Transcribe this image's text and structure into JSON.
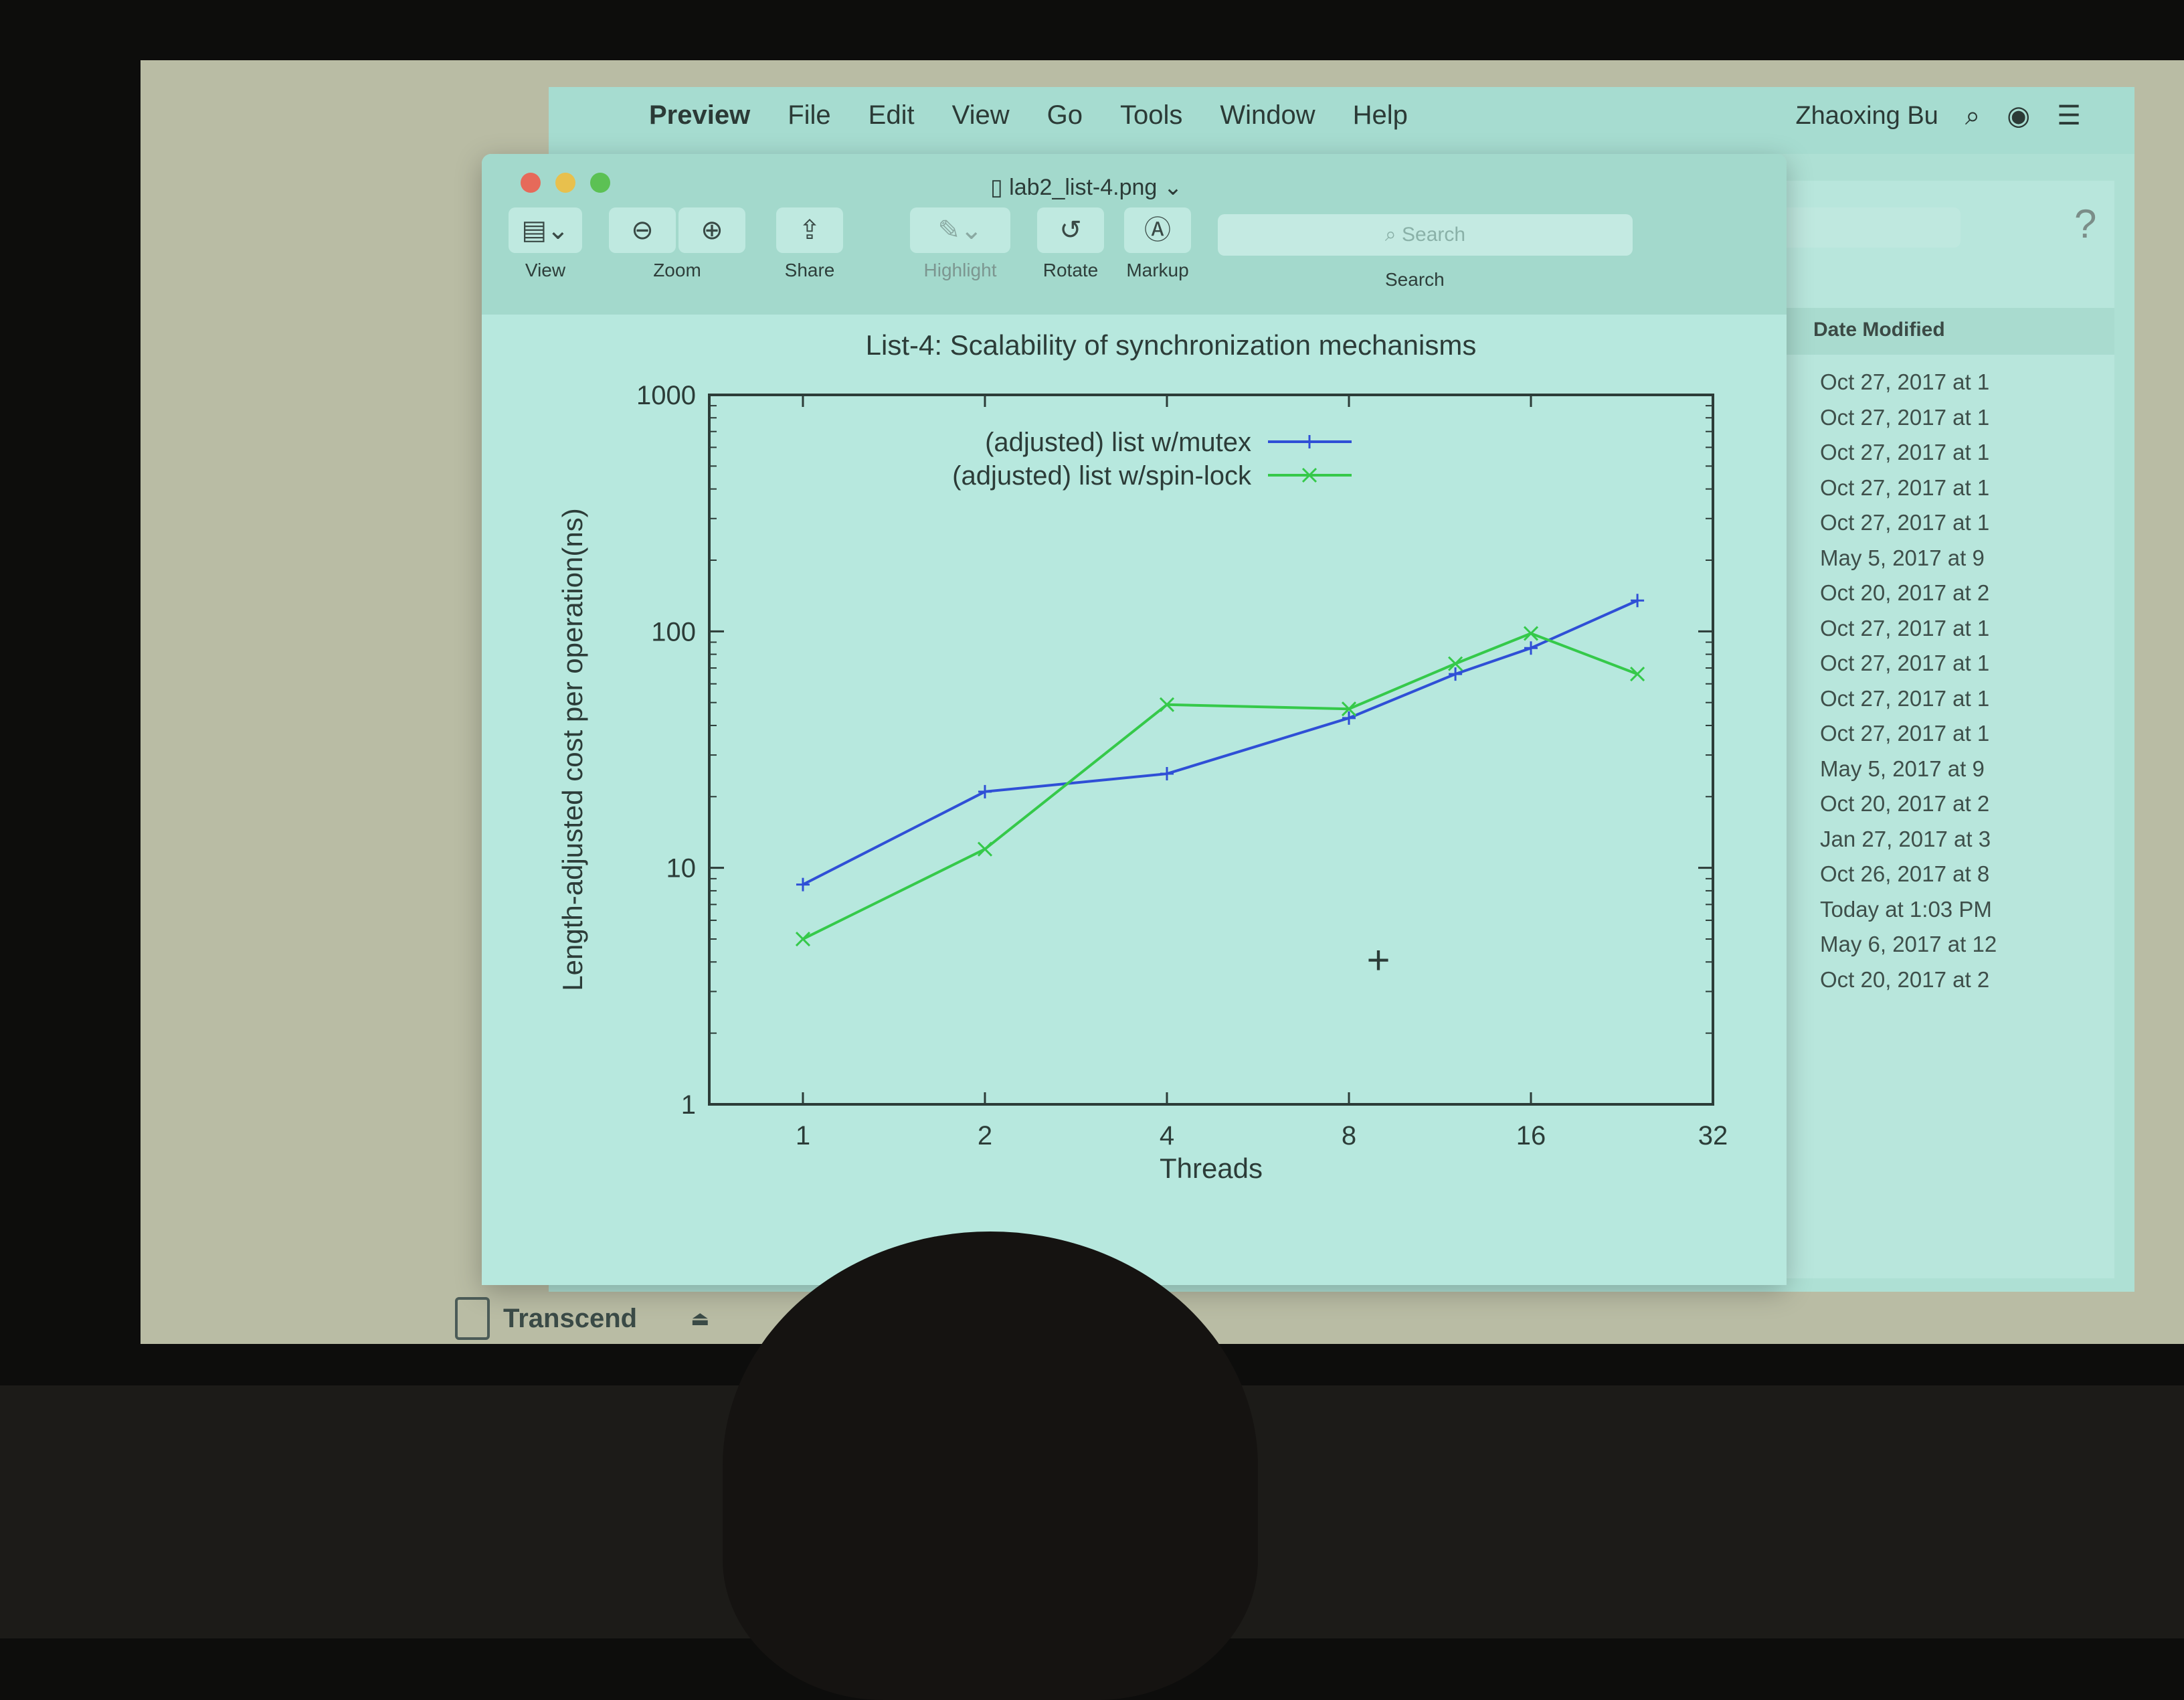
{
  "menubar": {
    "apple": "",
    "items": [
      "Preview",
      "File",
      "Edit",
      "View",
      "Go",
      "Tools",
      "Window",
      "Help"
    ],
    "user": "Zhaoxing Bu"
  },
  "window": {
    "title": "lab2_list-4.png",
    "toolbar": {
      "view_label": "View",
      "zoom_label": "Zoom",
      "share_label": "Share",
      "highlight_label": "Highlight",
      "rotate_label": "Rotate",
      "markup_label": "Markup",
      "search_placeholder": "Search",
      "search_label": "Search"
    }
  },
  "sidebar": {
    "device_name": "Transcend"
  },
  "finder": {
    "column_header": "Date Modified",
    "dates": [
      "Oct 27, 2017 at 1",
      "Oct 27, 2017 at 1",
      "Oct 27, 2017 at 1",
      "Oct 27, 2017 at 1",
      "Oct 27, 2017 at 1",
      "May 5, 2017 at 9",
      "Oct 20, 2017 at 2",
      "Oct 27, 2017 at 1",
      "Oct 27, 2017 at 1",
      "Oct 27, 2017 at 1",
      "Oct 27, 2017 at 1",
      "May 5, 2017 at 9",
      "Oct 20, 2017 at 2",
      "Jan 27, 2017 at 3",
      "Oct 26, 2017 at 8",
      "Today at 1:03 PM",
      "May 6, 2017 at 12",
      "Oct 20, 2017 at 2"
    ]
  },
  "chart_data": {
    "type": "line",
    "title": "List-4: Scalability of synchronization mechanisms",
    "xlabel": "Threads",
    "ylabel": "Length-adjusted cost per operation(ns)",
    "x_scale": "log2",
    "y_scale": "log10",
    "xlim": [
      0.7,
      32
    ],
    "ylim": [
      1,
      1000
    ],
    "x_ticks": [
      "1",
      "2",
      "4",
      "8",
      "16",
      "32"
    ],
    "y_ticks": [
      "1",
      "10",
      "100",
      "1000"
    ],
    "legend_position": "top-center",
    "series": [
      {
        "name": "(adjusted) list w/mutex",
        "color": "#2f4fd6",
        "marker": "+",
        "x": [
          1,
          2,
          4,
          8,
          12,
          16,
          24
        ],
        "y": [
          8.5,
          21,
          25,
          43,
          66,
          85,
          135
        ]
      },
      {
        "name": "(adjusted) list w/spin-lock",
        "color": "#35c94a",
        "marker": "x",
        "x": [
          1,
          2,
          4,
          8,
          12,
          16,
          24
        ],
        "y": [
          5,
          12,
          49,
          47,
          73,
          98,
          66
        ]
      }
    ]
  }
}
